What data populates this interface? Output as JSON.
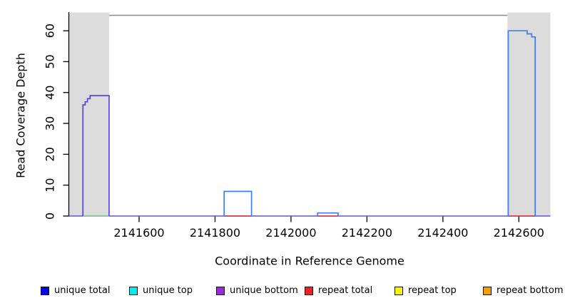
{
  "chart_data": {
    "type": "line",
    "subtype": "step-coverage",
    "title": "",
    "xlabel": "Coordinate in Reference Genome",
    "ylabel": "Read Coverage Depth",
    "xlim": [
      2141415,
      2142683
    ],
    "ylim": [
      0,
      65
    ],
    "grid": false,
    "x_ticks": [
      {
        "value": 2141600,
        "label": "2141600"
      },
      {
        "value": 2141800,
        "label": "2141800"
      },
      {
        "value": 2142000,
        "label": "2142000"
      },
      {
        "value": 2142200,
        "label": "2142200"
      },
      {
        "value": 2142400,
        "label": "2142400"
      },
      {
        "value": 2142600,
        "label": "2142600"
      }
    ],
    "y_ticks": [
      {
        "value": 0,
        "label": "0"
      },
      {
        "value": 10,
        "label": "10"
      },
      {
        "value": 20,
        "label": "20"
      },
      {
        "value": 30,
        "label": "30"
      },
      {
        "value": 40,
        "label": "40"
      },
      {
        "value": 50,
        "label": "50"
      },
      {
        "value": 60,
        "label": "60"
      }
    ],
    "shaded_regions": {
      "color": "#DCDCDC",
      "regions": [
        [
          2141415,
          2141521
        ],
        [
          2142570,
          2142683
        ]
      ]
    },
    "frame_colors": {
      "top_border": "#8C8C8C",
      "axis": "#000000"
    },
    "series": [
      {
        "name": "zero-baseline",
        "color": "#7668E6",
        "width": 1.6,
        "kind": "segments",
        "data": [
          [
            2141415,
            2142683,
            0
          ]
        ]
      },
      {
        "name": "repeat-total-coverage",
        "color": "#EE3B40",
        "width": 1.6,
        "kind": "segments",
        "data": [
          [
            2141824,
            2141896,
            0
          ],
          [
            2142070,
            2142124,
            0
          ],
          [
            2142570,
            2142643,
            0
          ]
        ]
      },
      {
        "name": "strand-overlap-coverage",
        "color": "#8FD98F",
        "width": 1.6,
        "kind": "segments",
        "data": [
          [
            2141452,
            2141521,
            0
          ]
        ]
      },
      {
        "name": "left-peak-unique-coverage",
        "color": "#5A46DC",
        "width": 1.7,
        "kind": "steps",
        "data": [
          [
            2141452,
            36
          ],
          [
            2141458,
            37
          ],
          [
            2141464,
            38
          ],
          [
            2141471,
            39
          ],
          [
            2141521,
            0
          ]
        ]
      },
      {
        "name": "mid-block-unique-coverage",
        "color": "#3E7DF2",
        "width": 1.7,
        "kind": "steps",
        "data": [
          [
            2141824,
            8
          ],
          [
            2141896,
            0
          ]
        ]
      },
      {
        "name": "small-block-unique-coverage",
        "color": "#3E7DF2",
        "width": 1.7,
        "kind": "steps",
        "data": [
          [
            2142070,
            1
          ],
          [
            2142124,
            0
          ]
        ]
      },
      {
        "name": "right-peak-unique-coverage",
        "color": "#3E7DF2",
        "width": 1.7,
        "kind": "steps",
        "data": [
          [
            2142572,
            60
          ],
          [
            2142622,
            59
          ],
          [
            2142634,
            58
          ],
          [
            2142643,
            0
          ]
        ]
      }
    ]
  },
  "legend": {
    "swatch_border": "#111111",
    "items": [
      {
        "label": "unique total",
        "color": "#0000EE"
      },
      {
        "label": "unique top",
        "color": "#00EEEE"
      },
      {
        "label": "unique bottom",
        "color": "#9A2BDD"
      },
      {
        "label": "repeat total",
        "color": "#EE2222"
      },
      {
        "label": "repeat top",
        "color": "#F5F500"
      },
      {
        "label": "repeat bottom",
        "color": "#F0A000"
      }
    ]
  }
}
